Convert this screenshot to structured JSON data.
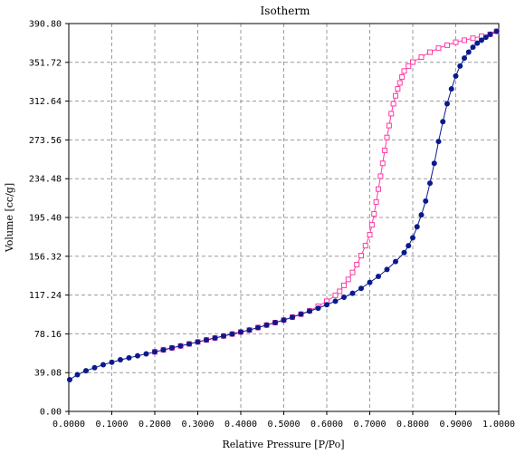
{
  "chart_data": {
    "type": "scatter",
    "title": "Isotherm",
    "xlabel": "Relative Pressure  [P/Po]",
    "ylabel": "Volume [cc/g]",
    "xlim": [
      0,
      1
    ],
    "ylim": [
      0,
      390.8
    ],
    "grid": true,
    "x_ticks": [
      "0.0000",
      "0.1000",
      "0.2000",
      "0.3000",
      "0.4000",
      "0.5000",
      "0.6000",
      "0.7000",
      "0.8000",
      "0.9000",
      "1.0000"
    ],
    "y_ticks": [
      "0.00",
      "39.08",
      "78.16",
      "117.24",
      "156.32",
      "195.40",
      "234.48",
      "273.56",
      "312.64",
      "351.72",
      "390.80"
    ],
    "series": [
      {
        "role": "adsorption",
        "color": "#0a1a8c",
        "marker": "filled-circle",
        "points": [
          [
            0.002,
            32.0
          ],
          [
            0.02,
            37.0
          ],
          [
            0.04,
            41.0
          ],
          [
            0.06,
            44.0
          ],
          [
            0.08,
            47.0
          ],
          [
            0.1,
            49.5
          ],
          [
            0.12,
            52.0
          ],
          [
            0.14,
            54.0
          ],
          [
            0.16,
            56.0
          ],
          [
            0.18,
            58.0
          ],
          [
            0.2,
            60.0
          ],
          [
            0.22,
            62.0
          ],
          [
            0.24,
            64.0
          ],
          [
            0.26,
            66.0
          ],
          [
            0.28,
            68.0
          ],
          [
            0.3,
            70.0
          ],
          [
            0.32,
            72.0
          ],
          [
            0.34,
            74.0
          ],
          [
            0.36,
            76.0
          ],
          [
            0.38,
            78.0
          ],
          [
            0.4,
            80.0
          ],
          [
            0.42,
            82.0
          ],
          [
            0.44,
            84.5
          ],
          [
            0.46,
            87.0
          ],
          [
            0.48,
            89.5
          ],
          [
            0.5,
            92.0
          ],
          [
            0.52,
            95.0
          ],
          [
            0.54,
            98.0
          ],
          [
            0.56,
            101.0
          ],
          [
            0.58,
            104.0
          ],
          [
            0.6,
            107.5
          ],
          [
            0.62,
            111.0
          ],
          [
            0.64,
            115.0
          ],
          [
            0.66,
            119.0
          ],
          [
            0.68,
            124.0
          ],
          [
            0.7,
            130.0
          ],
          [
            0.72,
            136.0
          ],
          [
            0.74,
            143.0
          ],
          [
            0.76,
            151.0
          ],
          [
            0.78,
            160.0
          ],
          [
            0.79,
            167.0
          ],
          [
            0.8,
            175.0
          ],
          [
            0.81,
            186.0
          ],
          [
            0.82,
            198.0
          ],
          [
            0.83,
            212.0
          ],
          [
            0.84,
            230.0
          ],
          [
            0.85,
            250.0
          ],
          [
            0.86,
            272.0
          ],
          [
            0.87,
            292.0
          ],
          [
            0.88,
            310.0
          ],
          [
            0.89,
            325.0
          ],
          [
            0.9,
            338.0
          ],
          [
            0.91,
            348.0
          ],
          [
            0.92,
            356.0
          ],
          [
            0.93,
            362.0
          ],
          [
            0.94,
            367.0
          ],
          [
            0.95,
            371.0
          ],
          [
            0.96,
            374.0
          ],
          [
            0.97,
            377.0
          ],
          [
            0.98,
            380.0
          ],
          [
            0.995,
            383.0
          ]
        ]
      },
      {
        "role": "desorption",
        "color": "#ff3aa5",
        "marker": "open-square",
        "points": [
          [
            0.995,
            383.0
          ],
          [
            0.98,
            380.0
          ],
          [
            0.96,
            378.0
          ],
          [
            0.94,
            376.0
          ],
          [
            0.92,
            374.0
          ],
          [
            0.9,
            372.0
          ],
          [
            0.88,
            369.0
          ],
          [
            0.86,
            366.0
          ],
          [
            0.84,
            362.0
          ],
          [
            0.82,
            357.0
          ],
          [
            0.8,
            352.0
          ],
          [
            0.79,
            348.0
          ],
          [
            0.78,
            343.0
          ],
          [
            0.775,
            337.0
          ],
          [
            0.77,
            331.0
          ],
          [
            0.765,
            325.0
          ],
          [
            0.76,
            318.0
          ],
          [
            0.755,
            310.0
          ],
          [
            0.75,
            300.0
          ],
          [
            0.745,
            288.0
          ],
          [
            0.74,
            276.0
          ],
          [
            0.735,
            263.0
          ],
          [
            0.73,
            250.0
          ],
          [
            0.725,
            237.0
          ],
          [
            0.72,
            224.0
          ],
          [
            0.715,
            211.0
          ],
          [
            0.71,
            199.0
          ],
          [
            0.705,
            188.0
          ],
          [
            0.7,
            178.0
          ],
          [
            0.69,
            167.0
          ],
          [
            0.68,
            157.0
          ],
          [
            0.67,
            148.0
          ],
          [
            0.66,
            140.0
          ],
          [
            0.65,
            133.0
          ],
          [
            0.64,
            127.0
          ],
          [
            0.63,
            121.0
          ],
          [
            0.62,
            117.0
          ],
          [
            0.6,
            111.0
          ],
          [
            0.58,
            106.0
          ],
          [
            0.56,
            101.5
          ],
          [
            0.54,
            98.0
          ],
          [
            0.52,
            95.0
          ],
          [
            0.5,
            92.0
          ],
          [
            0.48,
            89.5
          ],
          [
            0.46,
            87.0
          ],
          [
            0.44,
            84.5
          ],
          [
            0.42,
            82.0
          ],
          [
            0.4,
            80.0
          ],
          [
            0.38,
            78.0
          ],
          [
            0.36,
            76.0
          ],
          [
            0.34,
            74.0
          ],
          [
            0.32,
            72.0
          ],
          [
            0.3,
            70.0
          ],
          [
            0.28,
            68.0
          ],
          [
            0.26,
            66.0
          ],
          [
            0.24,
            64.0
          ],
          [
            0.22,
            62.0
          ],
          [
            0.2,
            60.0
          ]
        ]
      }
    ]
  }
}
